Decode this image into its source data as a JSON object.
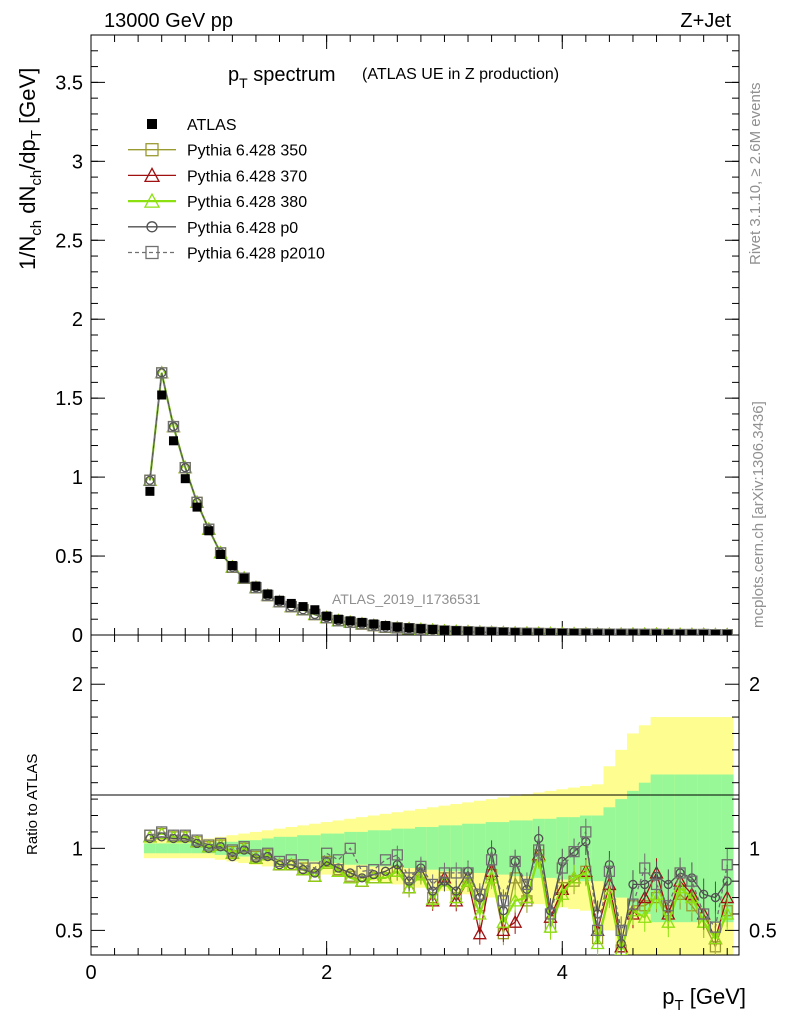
{
  "header": {
    "energy": "13000 GeV pp",
    "process": "Z+Jet",
    "title_main": "p",
    "title_sub": "T",
    "title_rest": " spectrum",
    "title_paren": "(ATLAS UE in Z production)",
    "side_rivet": "Rivet 3.1.10, ≥ 2.6M events",
    "side_mcplots": "mcplots.cern.ch [arXiv:1306.3436]",
    "analysis_id": "ATLAS_2019_I1736531"
  },
  "axes": {
    "main_ylabel": "1/N_ch dN_ch/dp_T [GeV]",
    "ratio_ylabel": "Ratio to ATLAS",
    "xlabel": "p_T [GeV]"
  },
  "legend": [
    {
      "name": "ATLAS",
      "color": "#000000",
      "marker": "filled-square",
      "line": "none"
    },
    {
      "name": "Pythia 6.428 350",
      "color": "#9a9a30",
      "marker": "open-square",
      "line": "solid"
    },
    {
      "name": "Pythia 6.428 370",
      "color": "#a01010",
      "marker": "open-triangle",
      "line": "solid"
    },
    {
      "name": "Pythia 6.428 380",
      "color": "#8ce010",
      "marker": "open-triangle",
      "line": "solid"
    },
    {
      "name": "Pythia 6.428 p0",
      "color": "#505050",
      "marker": "open-circle",
      "line": "solid"
    },
    {
      "name": "Pythia 6.428 p2010",
      "color": "#707070",
      "marker": "open-square",
      "line": "dashed"
    }
  ],
  "chart_data": {
    "type": "line",
    "xlim": [
      0,
      5.5
    ],
    "main_ylim": [
      0,
      3.8
    ],
    "ratio_ylim": [
      0.35,
      2.3
    ],
    "xticks": [
      0,
      2,
      4
    ],
    "main_yticks": [
      0,
      0.5,
      1,
      1.5,
      2,
      2.5,
      3,
      3.5
    ],
    "main_ytick_labels": [
      "0",
      "0.5",
      "1",
      "1.5",
      "2",
      "2.5",
      "3",
      "3.5"
    ],
    "ratio_yticks": [
      0.5,
      1,
      2
    ],
    "ratio_ytick_labels": [
      "0.5",
      "1",
      "2"
    ],
    "atlas": {
      "x": [
        0.5,
        0.6,
        0.7,
        0.8,
        0.9,
        1.0,
        1.1,
        1.2,
        1.3,
        1.4,
        1.5,
        1.6,
        1.7,
        1.8,
        1.9,
        2.0,
        2.1,
        2.2,
        2.3,
        2.4,
        2.5,
        2.6,
        2.7,
        2.8,
        2.9,
        3.0,
        3.1,
        3.2,
        3.3,
        3.4,
        3.5,
        3.6,
        3.7,
        3.8,
        3.9,
        4.0,
        4.1,
        4.2,
        4.3,
        4.4,
        4.5,
        4.6,
        4.7,
        4.8,
        4.9,
        5.0,
        5.1,
        5.2,
        5.3,
        5.4
      ],
      "y": [
        0.91,
        1.52,
        1.23,
        0.99,
        0.81,
        0.66,
        0.51,
        0.44,
        0.36,
        0.31,
        0.26,
        0.22,
        0.2,
        0.18,
        0.16,
        0.12,
        0.1,
        0.09,
        0.08,
        0.07,
        0.06,
        0.05,
        0.045,
        0.04,
        0.035,
        0.03,
        0.027,
        0.024,
        0.021,
        0.019,
        0.017,
        0.015,
        0.013,
        0.012,
        0.011,
        0.01,
        0.009,
        0.008,
        0.007,
        0.007,
        0.006,
        0.006,
        0.005,
        0.005,
        0.004,
        0.004,
        0.004,
        0.003,
        0.003,
        0.003
      ]
    },
    "ratio_bands": {
      "inner_half_width": [
        0.03,
        0.03,
        0.03,
        0.03,
        0.03,
        0.03,
        0.04,
        0.04,
        0.05,
        0.05,
        0.06,
        0.07,
        0.07,
        0.08,
        0.08,
        0.09,
        0.09,
        0.1,
        0.1,
        0.11,
        0.11,
        0.12,
        0.12,
        0.13,
        0.13,
        0.14,
        0.14,
        0.15,
        0.15,
        0.16,
        0.16,
        0.17,
        0.17,
        0.18,
        0.18,
        0.19,
        0.19,
        0.2,
        0.2,
        0.25,
        0.3,
        0.35,
        0.4,
        0.45,
        0.45,
        0.45,
        0.45,
        0.45,
        0.45,
        0.45
      ],
      "outer_half_width": [
        0.06,
        0.06,
        0.06,
        0.06,
        0.06,
        0.06,
        0.07,
        0.08,
        0.09,
        0.1,
        0.11,
        0.12,
        0.13,
        0.14,
        0.15,
        0.16,
        0.17,
        0.18,
        0.19,
        0.2,
        0.21,
        0.22,
        0.23,
        0.24,
        0.25,
        0.26,
        0.27,
        0.28,
        0.29,
        0.3,
        0.31,
        0.32,
        0.33,
        0.34,
        0.35,
        0.36,
        0.37,
        0.38,
        0.39,
        0.5,
        0.6,
        0.7,
        0.75,
        0.8,
        0.8,
        0.8,
        0.8,
        0.8,
        0.8,
        0.8
      ]
    },
    "series": [
      {
        "name": "Pythia 6.428 350",
        "main_y": [
          0.98,
          1.66,
          1.32,
          1.06,
          0.84,
          0.67,
          0.52,
          0.43,
          0.36,
          0.3,
          0.25,
          0.21,
          0.18,
          0.16,
          0.13,
          0.11,
          0.09,
          0.08,
          0.07,
          0.06,
          0.05,
          0.045,
          0.04,
          0.035,
          0.03,
          0.025,
          0.022,
          0.02,
          0.018,
          0.016,
          0.014,
          0.012,
          0.011,
          0.01,
          0.009,
          0.008,
          0.007,
          0.007,
          0.006,
          0.005,
          0.005,
          0.005,
          0.004,
          0.004,
          0.003,
          0.003,
          0.003,
          0.003,
          0.002,
          0.002
        ],
        "ratio": [
          1.08,
          1.09,
          1.07,
          1.07,
          1.04,
          1.01,
          1.02,
          0.98,
          1.0,
          0.95,
          0.96,
          0.9,
          0.9,
          0.88,
          0.83,
          0.92,
          0.87,
          0.83,
          0.8,
          0.82,
          0.82,
          0.86,
          0.76,
          0.85,
          0.7,
          0.82,
          0.7,
          0.82,
          0.65,
          0.84,
          0.48,
          0.82,
          0.68,
          0.96,
          0.52,
          0.76,
          0.8,
          0.86,
          0.45,
          0.72,
          0.38,
          0.65,
          0.65,
          0.7,
          0.62,
          0.72,
          0.65,
          0.55,
          0.4,
          0.62
        ]
      },
      {
        "name": "Pythia 6.428 370",
        "main_y": [
          0.98,
          1.66,
          1.32,
          1.06,
          0.84,
          0.67,
          0.52,
          0.43,
          0.36,
          0.3,
          0.25,
          0.21,
          0.18,
          0.16,
          0.13,
          0.11,
          0.09,
          0.08,
          0.07,
          0.06,
          0.05,
          0.045,
          0.04,
          0.035,
          0.03,
          0.025,
          0.022,
          0.02,
          0.018,
          0.016,
          0.014,
          0.012,
          0.011,
          0.01,
          0.009,
          0.008,
          0.007,
          0.007,
          0.006,
          0.005,
          0.005,
          0.005,
          0.004,
          0.004,
          0.003,
          0.003,
          0.003,
          0.003,
          0.002,
          0.002
        ],
        "ratio": [
          1.07,
          1.09,
          1.07,
          1.07,
          1.04,
          1.01,
          1.02,
          0.97,
          1.0,
          0.94,
          0.96,
          0.9,
          0.9,
          0.87,
          0.83,
          0.91,
          0.86,
          0.82,
          0.8,
          0.82,
          0.82,
          0.86,
          0.76,
          0.84,
          0.68,
          0.82,
          0.68,
          0.8,
          0.48,
          0.86,
          0.5,
          0.55,
          0.7,
          0.96,
          0.58,
          0.75,
          0.82,
          0.86,
          0.5,
          0.78,
          0.4,
          0.6,
          0.7,
          0.85,
          0.6,
          0.8,
          0.72,
          0.6,
          0.45,
          0.7
        ]
      },
      {
        "name": "Pythia 6.428 380",
        "main_y": [
          0.98,
          1.66,
          1.32,
          1.06,
          0.84,
          0.67,
          0.52,
          0.43,
          0.36,
          0.3,
          0.25,
          0.21,
          0.18,
          0.16,
          0.13,
          0.11,
          0.09,
          0.08,
          0.07,
          0.06,
          0.05,
          0.045,
          0.04,
          0.035,
          0.03,
          0.025,
          0.022,
          0.02,
          0.018,
          0.016,
          0.014,
          0.012,
          0.011,
          0.01,
          0.009,
          0.008,
          0.007,
          0.007,
          0.006,
          0.005,
          0.005,
          0.005,
          0.004,
          0.004,
          0.003,
          0.003,
          0.003,
          0.003,
          0.002,
          0.002
        ],
        "ratio": [
          1.07,
          1.09,
          1.07,
          1.07,
          1.04,
          1.01,
          1.02,
          0.97,
          1.0,
          0.94,
          0.96,
          0.9,
          0.9,
          0.87,
          0.83,
          0.91,
          0.86,
          0.82,
          0.8,
          0.82,
          0.82,
          0.86,
          0.76,
          0.84,
          0.69,
          0.8,
          0.7,
          0.8,
          0.6,
          0.82,
          0.55,
          0.68,
          0.7,
          0.95,
          0.52,
          0.72,
          0.82,
          0.85,
          0.42,
          0.72,
          0.38,
          0.62,
          0.58,
          0.72,
          0.55,
          0.76,
          0.7,
          0.55,
          0.45,
          0.6
        ]
      },
      {
        "name": "Pythia 6.428 p0",
        "main_y": [
          0.98,
          1.66,
          1.32,
          1.06,
          0.84,
          0.67,
          0.52,
          0.43,
          0.36,
          0.3,
          0.25,
          0.21,
          0.18,
          0.16,
          0.13,
          0.11,
          0.09,
          0.08,
          0.07,
          0.06,
          0.05,
          0.045,
          0.04,
          0.035,
          0.03,
          0.025,
          0.022,
          0.02,
          0.018,
          0.016,
          0.014,
          0.012,
          0.011,
          0.01,
          0.009,
          0.008,
          0.007,
          0.007,
          0.006,
          0.005,
          0.005,
          0.005,
          0.004,
          0.004,
          0.003,
          0.003,
          0.003,
          0.003,
          0.002,
          0.002
        ],
        "ratio": [
          1.06,
          1.07,
          1.06,
          1.06,
          1.03,
          1.0,
          1.01,
          0.95,
          0.99,
          0.94,
          0.95,
          0.9,
          0.9,
          0.87,
          0.85,
          0.92,
          0.88,
          0.85,
          0.82,
          0.84,
          0.86,
          0.9,
          0.8,
          0.88,
          0.74,
          0.8,
          0.74,
          0.86,
          0.7,
          0.98,
          0.62,
          0.92,
          0.75,
          1.06,
          0.62,
          0.92,
          0.98,
          1.04,
          0.6,
          0.9,
          0.42,
          0.78,
          0.78,
          0.83,
          0.78,
          0.85,
          0.82,
          0.72,
          0.7,
          0.8
        ]
      },
      {
        "name": "Pythia 6.428 p2010",
        "main_y": [
          0.98,
          1.66,
          1.32,
          1.06,
          0.84,
          0.67,
          0.52,
          0.43,
          0.36,
          0.3,
          0.25,
          0.21,
          0.18,
          0.16,
          0.13,
          0.11,
          0.09,
          0.08,
          0.07,
          0.06,
          0.05,
          0.045,
          0.04,
          0.035,
          0.03,
          0.025,
          0.022,
          0.02,
          0.018,
          0.016,
          0.014,
          0.012,
          0.011,
          0.01,
          0.009,
          0.008,
          0.007,
          0.007,
          0.006,
          0.005,
          0.005,
          0.005,
          0.004,
          0.004,
          0.003,
          0.003,
          0.003,
          0.003,
          0.002,
          0.002
        ],
        "ratio": [
          1.08,
          1.1,
          1.08,
          1.08,
          1.05,
          1.02,
          1.03,
          0.99,
          1.01,
          0.96,
          0.97,
          0.92,
          0.93,
          0.9,
          0.88,
          0.97,
          0.93,
          1.0,
          0.86,
          0.87,
          0.93,
          0.96,
          0.82,
          0.89,
          0.78,
          0.85,
          0.85,
          0.85,
          0.72,
          0.93,
          0.68,
          0.92,
          0.78,
          0.99,
          0.6,
          0.88,
          0.98,
          1.1,
          0.5,
          0.86,
          0.5,
          0.66,
          0.88,
          0.78,
          0.65,
          0.85,
          0.8,
          0.6,
          0.52,
          0.9
        ]
      }
    ]
  }
}
